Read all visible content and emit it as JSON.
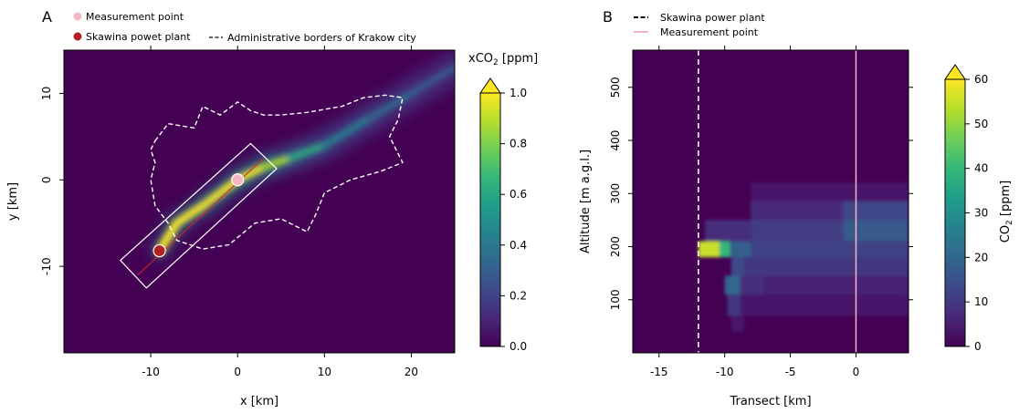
{
  "colors": {
    "background": "#440154",
    "plume_peak": "#fde725",
    "measurement_point": "#f4b7c4",
    "power_plant": "#b22222",
    "border": "#ffffff"
  },
  "colormap": [
    "#440154",
    "#482878",
    "#3e4989",
    "#31688e",
    "#26828e",
    "#1f9e89",
    "#35b779",
    "#6ece58",
    "#b5de2b",
    "#fde725"
  ],
  "panelA": {
    "label": "A",
    "legend": {
      "measurement": "Measurement point",
      "plant": "Skawina powet plant",
      "border": "Administrative borders of Krakow city"
    },
    "colorbar_title": "xCO",
    "colorbar_title_sub": "2",
    "colorbar_title_unit": " [ppm]"
  },
  "panelB": {
    "label": "B",
    "legend": {
      "plant": "Skawina power plant",
      "measurement": "Measurement point"
    },
    "colorbar_label_pre": "CO",
    "colorbar_label_sub": "2",
    "colorbar_label_post": " [ppm]"
  },
  "chart_data": [
    {
      "type": "heatmap",
      "title": "",
      "xlabel": "x [km]",
      "ylabel": "y [km]",
      "xlim": [
        -20,
        25
      ],
      "ylim": [
        -20,
        15
      ],
      "x_ticks": [
        -10,
        0,
        10,
        20
      ],
      "x_tick_labels": [
        "-10",
        "0",
        "10",
        "20"
      ],
      "y_ticks": [
        -10,
        0,
        10
      ],
      "y_tick_labels": [
        "-10",
        "0",
        "10"
      ],
      "colorbar": {
        "label": "xCO2 [ppm]",
        "range": [
          0,
          1.0
        ],
        "ticks": [
          0.0,
          0.2,
          0.4,
          0.6,
          0.8,
          1.0
        ],
        "tick_labels": [
          "0.0",
          "0.2",
          "0.4",
          "0.6",
          "0.8",
          "1.0"
        ],
        "extend": "max"
      },
      "measurement_point": [
        0,
        0
      ],
      "power_plant": [
        -9,
        -8.2
      ],
      "plume_axis": [
        [
          -9,
          -8.2
        ],
        [
          -7,
          -5
        ],
        [
          -4,
          -3
        ],
        [
          0,
          0
        ],
        [
          3,
          1.5
        ],
        [
          6,
          2.5
        ],
        [
          10,
          4
        ],
        [
          15,
          7
        ],
        [
          20,
          10
        ],
        [
          25,
          13
        ]
      ],
      "plume_intensity": [
        1.0,
        1.0,
        1.0,
        1.0,
        1.0,
        0.75,
        0.5,
        0.4,
        0.35,
        0.3
      ],
      "transect_box": [
        [
          -10.5,
          -12.5
        ],
        [
          4.5,
          1.3
        ],
        [
          1.5,
          4.2
        ],
        [
          -13.5,
          -9.3
        ]
      ],
      "transect_line": [
        [
          -11.5,
          -11
        ],
        [
          3,
          2.5
        ]
      ],
      "krakow_border": [
        [
          -9.5,
          4.5
        ],
        [
          -8,
          6.5
        ],
        [
          -5,
          6
        ],
        [
          -4,
          8.5
        ],
        [
          -2,
          7.5
        ],
        [
          0,
          9
        ],
        [
          1.5,
          8
        ],
        [
          3,
          7.5
        ],
        [
          5,
          7.5
        ],
        [
          8,
          7.8
        ],
        [
          12,
          8.5
        ],
        [
          14.5,
          9.5
        ],
        [
          17,
          9.8
        ],
        [
          19,
          9.5
        ],
        [
          18.5,
          7
        ],
        [
          17.5,
          5
        ],
        [
          19,
          2
        ],
        [
          16.5,
          1
        ],
        [
          13,
          0
        ],
        [
          10,
          -1.5
        ],
        [
          9,
          -4
        ],
        [
          8,
          -6
        ],
        [
          5,
          -4.5
        ],
        [
          2,
          -5
        ],
        [
          -1,
          -7.5
        ],
        [
          -4,
          -8
        ],
        [
          -7,
          -7
        ],
        [
          -8,
          -5
        ],
        [
          -9.5,
          -3
        ],
        [
          -10,
          0
        ],
        [
          -9.5,
          2
        ],
        [
          -10,
          3.5
        ],
        [
          -9.5,
          4.5
        ]
      ]
    },
    {
      "type": "heatmap",
      "title": "",
      "xlabel": "Transect [km]",
      "ylabel": "Altitude [m a.g.l.]",
      "xlim": [
        -17,
        4
      ],
      "ylim": [
        0,
        570
      ],
      "x_ticks": [
        -15,
        -10,
        -5,
        0
      ],
      "x_tick_labels": [
        "-15",
        "-10",
        "-5",
        "0"
      ],
      "y_ticks": [
        100,
        200,
        300,
        400,
        500
      ],
      "y_tick_labels": [
        "100",
        "200",
        "300",
        "400",
        "500"
      ],
      "colorbar": {
        "label": "CO2 [ppm]",
        "range": [
          0,
          60
        ],
        "ticks": [
          0,
          10,
          20,
          30,
          40,
          50,
          60
        ],
        "tick_labels": [
          "0",
          "10",
          "20",
          "30",
          "40",
          "50",
          "60"
        ],
        "extend": "max"
      },
      "power_plant_x": -12,
      "measurement_x": 0,
      "layers": [
        {
          "alt": [
            180,
            210
          ],
          "x": [
            -12,
            -10.4
          ],
          "value": 55
        },
        {
          "alt": [
            180,
            210
          ],
          "x": [
            -10.4,
            -9.6
          ],
          "value": 40
        },
        {
          "alt": [
            180,
            210
          ],
          "x": [
            -9.6,
            -8
          ],
          "value": 18
        },
        {
          "alt": [
            180,
            210
          ],
          "x": [
            -8,
            4
          ],
          "value": 12
        },
        {
          "alt": [
            210,
            250
          ],
          "x": [
            -11.5,
            -8
          ],
          "value": 8
        },
        {
          "alt": [
            210,
            250
          ],
          "x": [
            -8,
            -1
          ],
          "value": 11
        },
        {
          "alt": [
            210,
            250
          ],
          "x": [
            -1,
            4
          ],
          "value": 17
        },
        {
          "alt": [
            250,
            285
          ],
          "x": [
            -8,
            -1
          ],
          "value": 7
        },
        {
          "alt": [
            250,
            285
          ],
          "x": [
            -1,
            4
          ],
          "value": 13
        },
        {
          "alt": [
            285,
            320
          ],
          "x": [
            -8,
            4
          ],
          "value": 4
        },
        {
          "alt": [
            145,
            180
          ],
          "x": [
            -9.5,
            -8.5
          ],
          "value": 14
        },
        {
          "alt": [
            145,
            180
          ],
          "x": [
            -8.5,
            4
          ],
          "value": 10
        },
        {
          "alt": [
            110,
            145
          ],
          "x": [
            -10,
            -8.8
          ],
          "value": 20
        },
        {
          "alt": [
            110,
            145
          ],
          "x": [
            -8.8,
            -7
          ],
          "value": 8
        },
        {
          "alt": [
            110,
            145
          ],
          "x": [
            -7,
            4
          ],
          "value": 6
        },
        {
          "alt": [
            70,
            110
          ],
          "x": [
            -9.8,
            -8.8
          ],
          "value": 10
        },
        {
          "alt": [
            70,
            110
          ],
          "x": [
            -8.8,
            4
          ],
          "value": 4
        },
        {
          "alt": [
            40,
            70
          ],
          "x": [
            -9.5,
            -8.5
          ],
          "value": 4
        }
      ]
    }
  ]
}
